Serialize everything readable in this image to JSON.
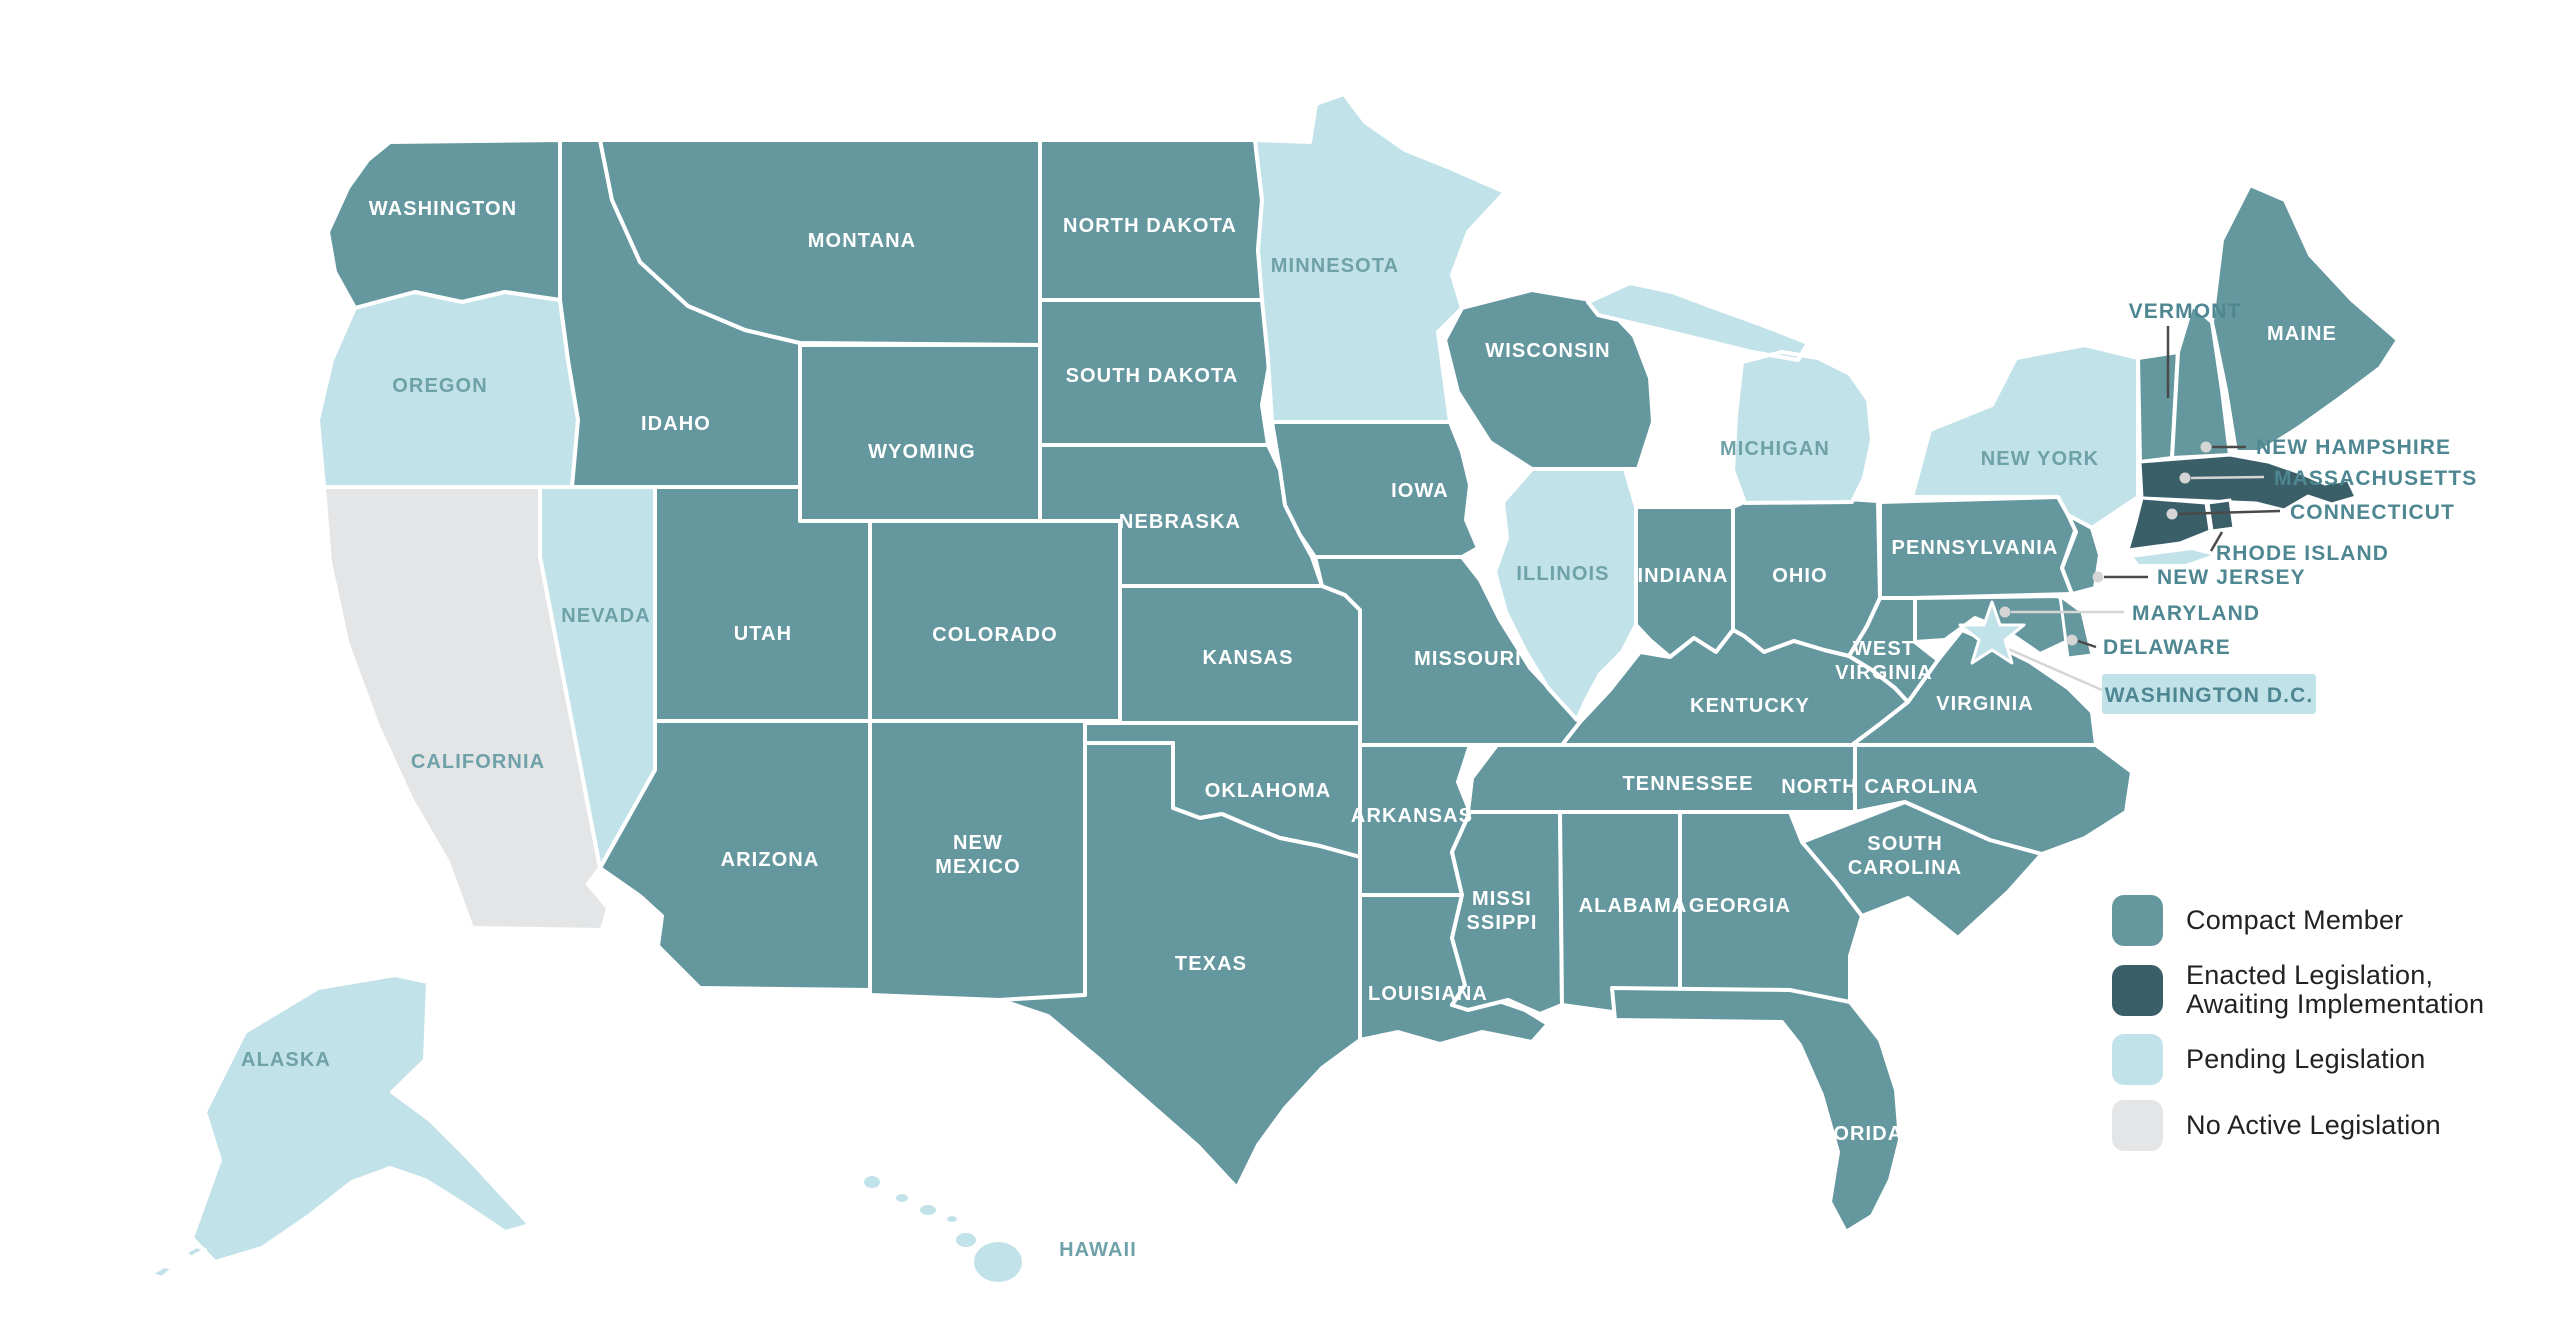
{
  "colors": {
    "compact_member": "#64979E",
    "enacted_awaiting_implementation": "#3A5F69",
    "pending_legislation": "#C2E2E9",
    "no_active_legislation": "#E4E5E6",
    "map_border": "#FFFFFF",
    "label_on_state": "#FFFFFF",
    "label_muted": "#6FA1A9",
    "label_callout": "#4E8791",
    "legend_text": "#222222",
    "callout_line": "#4A4A4A",
    "callout_line_light": "#D5D5D5"
  },
  "legend": {
    "items": [
      {
        "label": "Compact Member",
        "color_key": "compact_member"
      },
      {
        "label": "Enacted Legislation,\nAwaiting Implementation",
        "color_key": "enacted_awaiting_implementation"
      },
      {
        "label": "Pending Legislation",
        "color_key": "pending_legislation"
      },
      {
        "label": "No Active Legislation",
        "color_key": "no_active_legislation"
      }
    ]
  },
  "states": [
    {
      "id": "wa",
      "name": "Washington",
      "status": "compact_member"
    },
    {
      "id": "or",
      "name": "Oregon",
      "status": "pending_legislation"
    },
    {
      "id": "ca",
      "name": "California",
      "status": "no_active_legislation"
    },
    {
      "id": "nv",
      "name": "Nevada",
      "status": "pending_legislation"
    },
    {
      "id": "id",
      "name": "Idaho",
      "status": "compact_member"
    },
    {
      "id": "mt",
      "name": "Montana",
      "status": "compact_member"
    },
    {
      "id": "wy",
      "name": "Wyoming",
      "status": "compact_member"
    },
    {
      "id": "ut",
      "name": "Utah",
      "status": "compact_member"
    },
    {
      "id": "az",
      "name": "Arizona",
      "status": "compact_member"
    },
    {
      "id": "nm",
      "name": "New Mexico",
      "status": "compact_member"
    },
    {
      "id": "co",
      "name": "Colorado",
      "status": "compact_member"
    },
    {
      "id": "nd",
      "name": "North Dakota",
      "status": "compact_member"
    },
    {
      "id": "sd",
      "name": "South Dakota",
      "status": "compact_member"
    },
    {
      "id": "ne",
      "name": "Nebraska",
      "status": "compact_member"
    },
    {
      "id": "ks",
      "name": "Kansas",
      "status": "compact_member"
    },
    {
      "id": "ok",
      "name": "Oklahoma",
      "status": "compact_member"
    },
    {
      "id": "tx",
      "name": "Texas",
      "status": "compact_member"
    },
    {
      "id": "mn",
      "name": "Minnesota",
      "status": "pending_legislation"
    },
    {
      "id": "ia",
      "name": "Iowa",
      "status": "compact_member"
    },
    {
      "id": "mo",
      "name": "Missouri",
      "status": "compact_member"
    },
    {
      "id": "ar",
      "name": "Arkansas",
      "status": "compact_member"
    },
    {
      "id": "la",
      "name": "Louisiana",
      "status": "compact_member"
    },
    {
      "id": "wi",
      "name": "Wisconsin",
      "status": "compact_member"
    },
    {
      "id": "il",
      "name": "Illinois",
      "status": "pending_legislation"
    },
    {
      "id": "in",
      "name": "Indiana",
      "status": "compact_member"
    },
    {
      "id": "oh",
      "name": "Ohio",
      "status": "compact_member"
    },
    {
      "id": "mi",
      "name": "Michigan",
      "status": "pending_legislation"
    },
    {
      "id": "ky",
      "name": "Kentucky",
      "status": "compact_member"
    },
    {
      "id": "tn",
      "name": "Tennessee",
      "status": "compact_member"
    },
    {
      "id": "ms",
      "name": "Mississippi",
      "status": "compact_member"
    },
    {
      "id": "al",
      "name": "Alabama",
      "status": "compact_member"
    },
    {
      "id": "ga",
      "name": "Georgia",
      "status": "compact_member"
    },
    {
      "id": "fl",
      "name": "Florida",
      "status": "compact_member"
    },
    {
      "id": "sc",
      "name": "South Carolina",
      "status": "compact_member"
    },
    {
      "id": "nc",
      "name": "North Carolina",
      "status": "compact_member"
    },
    {
      "id": "va",
      "name": "Virginia",
      "status": "compact_member"
    },
    {
      "id": "wv",
      "name": "West Virginia",
      "status": "compact_member"
    },
    {
      "id": "pa",
      "name": "Pennsylvania",
      "status": "compact_member"
    },
    {
      "id": "ny",
      "name": "New York",
      "status": "pending_legislation"
    },
    {
      "id": "nj",
      "name": "New Jersey",
      "status": "compact_member"
    },
    {
      "id": "md",
      "name": "Maryland",
      "status": "compact_member"
    },
    {
      "id": "de",
      "name": "Delaware",
      "status": "compact_member"
    },
    {
      "id": "vt",
      "name": "Vermont",
      "status": "compact_member"
    },
    {
      "id": "nh",
      "name": "New Hampshire",
      "status": "compact_member"
    },
    {
      "id": "ma",
      "name": "Massachusetts",
      "status": "enacted_awaiting_implementation"
    },
    {
      "id": "ct",
      "name": "Connecticut",
      "status": "enacted_awaiting_implementation"
    },
    {
      "id": "ri",
      "name": "Rhode Island",
      "status": "enacted_awaiting_implementation"
    },
    {
      "id": "me",
      "name": "Maine",
      "status": "compact_member"
    },
    {
      "id": "ak",
      "name": "Alaska",
      "status": "pending_legislation"
    },
    {
      "id": "hi",
      "name": "Hawaii",
      "status": "pending_legislation"
    },
    {
      "id": "dc",
      "name": "Washington D.C.",
      "status": "pending_legislation"
    }
  ],
  "state_labels": {
    "wa": "WASHINGTON",
    "or": "OREGON",
    "ca": "CALIFORNIA",
    "nv": "NEVADA",
    "id": "IDAHO",
    "mt": "MONTANA",
    "wy": "WYOMING",
    "ut": "UTAH",
    "az": "ARIZONA",
    "nm": "NEW\nMEXICO",
    "co": "COLORADO",
    "nd": "NORTH DAKOTA",
    "sd": "SOUTH DAKOTA",
    "ne": "NEBRASKA",
    "ks": "KANSAS",
    "ok": "OKLAHOMA",
    "tx": "TEXAS",
    "mn": "MINNESOTA",
    "ia": "IOWA",
    "mo": "MISSOURI",
    "ar": "ARKANSAS",
    "la": "LOUISIANA",
    "wi": "WISCONSIN",
    "il": "ILLINOIS",
    "in": "INDIANA",
    "oh": "OHIO",
    "mi": "MICHIGAN",
    "ky": "KENTUCKY",
    "tn": "TENNESSEE",
    "ms": "MISSI\nSSIPPI",
    "al": "ALABAMA",
    "ga": "GEORGIA",
    "fl": "FLORIDA",
    "sc": "SOUTH\nCAROLINA",
    "nc": "NORTH CAROLINA",
    "va": "VIRGINIA",
    "wv": "WEST\nVIRGINIA",
    "pa": "PENNSYLVANIA",
    "ny": "NEW YORK",
    "nj": "NEW JERSEY",
    "md": "MARYLAND",
    "de": "DELAWARE",
    "vt": "VERMONT",
    "nh": "NEW HAMPSHIRE",
    "ma": "MASSACHUSETTS",
    "ct": "CONNECTICUT",
    "ri": "RHODE ISLAND",
    "me": "MAINE",
    "ak": "ALASKA",
    "hi": "HAWAII",
    "dc": "WASHINGTON D.C."
  }
}
